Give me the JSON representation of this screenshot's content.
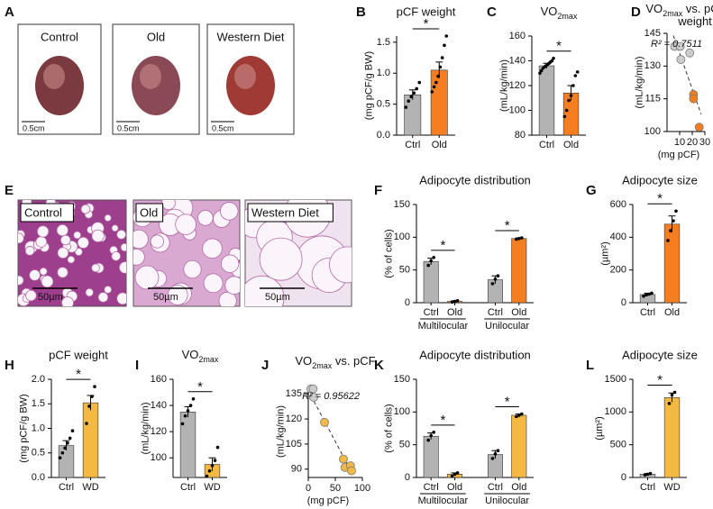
{
  "images": [
    {
      "label": "A",
      "panels": [
        {
          "caption": "Control",
          "scale": "0.5cm"
        },
        {
          "caption": "Old",
          "scale": "0.5cm"
        },
        {
          "caption": "Western Diet",
          "scale": "0.5cm"
        }
      ]
    },
    {
      "label": "E",
      "panels": [
        {
          "caption": "Control",
          "scale": "50µm"
        },
        {
          "caption": "Old",
          "scale": "50µm"
        },
        {
          "caption": "Western Diet",
          "scale": "50µm"
        }
      ]
    }
  ],
  "chart_data": [
    {
      "type": "bar",
      "label": "B",
      "title": "pCF weight",
      "ylabel": "(mg pCF/g BW)",
      "categories": [
        "Ctrl",
        "Old"
      ],
      "values": [
        0.65,
        1.05
      ],
      "errors": [
        0.08,
        0.13
      ],
      "colors": [
        "#b3b3b3",
        "#f57f20"
      ],
      "points": [
        [
          0.45,
          0.55,
          0.62,
          0.68,
          0.75,
          0.85
        ],
        [
          0.7,
          0.78,
          0.85,
          0.95,
          1.1,
          1.25,
          1.45,
          1.6
        ]
      ],
      "ylim": [
        0,
        1.6
      ],
      "yticks": [
        {
          "value": 0,
          "label": "0.0"
        },
        0.5,
        {
          "value": 1,
          "label": "1.0"
        },
        1.5
      ],
      "significance": [
        {
          "label": "*",
          "between": [
            0,
            1
          ]
        }
      ]
    },
    {
      "type": "bar",
      "label": "C",
      "title": [
        {
          "text": "VO"
        },
        {
          "text": "2max",
          "sub": true
        }
      ],
      "ylabel": "(mL/kg/min)",
      "categories": [
        "Ctrl",
        "Old"
      ],
      "values": [
        136,
        114
      ],
      "errors": [
        2,
        6
      ],
      "colors": [
        "#b3b3b3",
        "#f57f20"
      ],
      "points": [
        [
          130,
          132,
          134,
          135,
          136,
          137,
          138,
          139,
          140,
          142
        ],
        [
          95,
          100,
          108,
          112,
          120,
          128,
          131
        ]
      ],
      "ylim": [
        80,
        160
      ],
      "yticks": [
        80,
        100,
        120,
        140,
        160
      ],
      "significance": [
        {
          "label": "*",
          "between": [
            0,
            1
          ]
        }
      ]
    },
    {
      "type": "scatter",
      "label": "D",
      "title": [
        {
          "text": "VO"
        },
        {
          "text": "2max",
          "sub": true
        },
        {
          "text": " vs. pCF"
        },
        {
          "text": "weight",
          "newline": true
        }
      ],
      "xlabel": "(mg pCF)",
      "ylabel": "(mL/kg/min)",
      "x": [
        6,
        10.5,
        11,
        18,
        21,
        21,
        25.5
      ],
      "y": [
        139,
        139,
        133,
        136,
        117,
        115,
        102
      ],
      "colors": [
        "#cccccc",
        "#cccccc",
        "#cccccc",
        "#cccccc",
        "#f57f20",
        "#f57f20",
        "#f57f20"
      ],
      "trendline": {
        "x": [
          5,
          27
        ],
        "y": [
          144,
          108
        ]
      },
      "annotation": "R² = 0.7511",
      "xlim": [
        0,
        30
      ],
      "xticks": [
        10,
        20,
        30
      ],
      "ylim": [
        100,
        145
      ],
      "yticks": [
        100,
        115,
        130,
        145
      ]
    },
    {
      "type": "bar",
      "label": "F",
      "title": "Adipocyte distribution",
      "ylabel": "(% of cells)",
      "categories": [
        "Ctrl",
        "Old",
        "Ctrl",
        "Old"
      ],
      "values": [
        63,
        2,
        35,
        98
      ],
      "errors": [
        5,
        1,
        6,
        1
      ],
      "colors": [
        "#b3b3b3",
        "#f57f20",
        "#b3b3b3",
        "#f57f20"
      ],
      "points": [
        [
          57,
          64,
          69
        ],
        [
          1,
          2,
          3
        ],
        [
          29,
          36,
          41
        ],
        [
          97,
          98,
          99
        ]
      ],
      "groups": [
        {
          "label": "Multilocular",
          "categories": [
            0,
            1
          ]
        },
        {
          "label": "Unilocular",
          "categories": [
            2,
            3
          ]
        }
      ],
      "ylim": [
        0,
        150
      ],
      "yticks": [
        0,
        50,
        100,
        150
      ],
      "significance": [
        {
          "label": "*",
          "between": [
            0,
            1
          ]
        },
        {
          "label": "*",
          "between": [
            2,
            3
          ]
        }
      ]
    },
    {
      "type": "bar",
      "label": "G",
      "title": "Adipocyte size",
      "ylabel": "(µm²)",
      "categories": [
        "Ctrl",
        "Old"
      ],
      "values": [
        50,
        480
      ],
      "errors": [
        8,
        50
      ],
      "colors": [
        "#b3b3b3",
        "#f57f20"
      ],
      "points": [
        [
          40,
          48,
          52,
          58
        ],
        [
          380,
          440,
          500,
          560
        ]
      ],
      "ylim": [
        0,
        600
      ],
      "yticks": [
        0,
        200,
        400,
        600
      ],
      "significance": [
        {
          "label": "*",
          "between": [
            0,
            1
          ]
        }
      ]
    },
    {
      "type": "bar",
      "label": "H",
      "title": "pCF weight",
      "ylabel": "(mg pCF/g BW)",
      "categories": [
        "Ctrl",
        "WD"
      ],
      "values": [
        0.65,
        1.52
      ],
      "errors": [
        0.1,
        0.15
      ],
      "colors": [
        "#b3b3b3",
        "#f4b942"
      ],
      "points": [
        [
          0.4,
          0.5,
          0.6,
          0.7,
          0.8,
          0.95
        ],
        [
          1.1,
          1.45,
          1.65,
          1.85
        ]
      ],
      "ylim": [
        0,
        2
      ],
      "yticks": [
        {
          "value": 0,
          "label": "0.0"
        },
        0.5,
        {
          "value": 1,
          "label": "1.0"
        },
        1.5,
        {
          "value": 2,
          "label": "2.0"
        }
      ],
      "significance": [
        {
          "label": "*",
          "between": [
            0,
            1
          ]
        }
      ]
    },
    {
      "type": "bar",
      "label": "I",
      "title": [
        {
          "text": "VO"
        },
        {
          "text": "2max",
          "sub": true
        }
      ],
      "ylabel": "(mL/kg/min)",
      "categories": [
        "Ctrl",
        "WD"
      ],
      "values": [
        135,
        95
      ],
      "errors": [
        4,
        5
      ],
      "colors": [
        "#b3b3b3",
        "#f4b942"
      ],
      "points": [
        [
          126,
          132,
          136,
          140,
          145
        ],
        [
          86,
          90,
          94,
          98,
          108
        ]
      ],
      "ylim": [
        85,
        160
      ],
      "yticks": [
        100,
        120,
        140,
        160
      ],
      "significance": [
        {
          "label": "*",
          "between": [
            0,
            1
          ]
        }
      ]
    },
    {
      "type": "scatter",
      "label": "J",
      "title": [
        {
          "text": "VO"
        },
        {
          "text": "2max",
          "sub": true
        },
        {
          "text": " vs. pCF"
        }
      ],
      "xlabel": "(mg pCF)",
      "ylabel": "(mL/kg/min)",
      "x": [
        5,
        9,
        10,
        30,
        65,
        68,
        78,
        80
      ],
      "y": [
        138,
        138,
        133,
        118,
        96,
        91,
        92,
        89
      ],
      "colors": [
        "#cccccc",
        "#cccccc",
        "#cccccc",
        "#f4b942",
        "#f4b942",
        "#f4b942",
        "#f4b942",
        "#f4b942"
      ],
      "trendline": {
        "x": [
          5,
          82
        ],
        "y": [
          134,
          87
        ]
      },
      "annotation": "R² = 0.95622",
      "xlim": [
        0,
        100
      ],
      "xticks": [
        0,
        50,
        100
      ],
      "ylim": [
        85,
        140
      ],
      "yticks": [
        90,
        105,
        120,
        135
      ]
    },
    {
      "type": "bar",
      "label": "K",
      "title": "Adipocyte distribution",
      "ylabel": "(% of cells)",
      "categories": [
        "Ctrl",
        "Old",
        "Ctrl",
        "Old"
      ],
      "values": [
        63,
        5,
        35,
        95
      ],
      "errors": [
        5,
        2,
        6,
        2
      ],
      "colors": [
        "#b3b3b3",
        "#f4b942",
        "#b3b3b3",
        "#f4b942"
      ],
      "points": [
        [
          57,
          64,
          69
        ],
        [
          2,
          5,
          7
        ],
        [
          29,
          36,
          41
        ],
        [
          93,
          95,
          97
        ]
      ],
      "groups": [
        {
          "label": "Multilocular",
          "categories": [
            0,
            1
          ]
        },
        {
          "label": "Unilocular",
          "categories": [
            2,
            3
          ]
        }
      ],
      "ylim": [
        0,
        150
      ],
      "yticks": [
        0,
        50,
        100,
        150
      ],
      "significance": [
        {
          "label": "*",
          "between": [
            0,
            1
          ]
        },
        {
          "label": "*",
          "between": [
            2,
            3
          ]
        }
      ]
    },
    {
      "type": "bar",
      "label": "L",
      "title": "Adipocyte size",
      "ylabel": "(µm²)",
      "categories": [
        "Ctrl",
        "WD"
      ],
      "values": [
        50,
        1220
      ],
      "errors": [
        10,
        70
      ],
      "colors": [
        "#b3b3b3",
        "#f4b942"
      ],
      "points": [
        [
          40,
          50,
          60
        ],
        [
          1130,
          1260,
          1300
        ]
      ],
      "ylim": [
        0,
        1500
      ],
      "yticks": [
        0,
        500,
        1000,
        1500
      ],
      "significance": [
        {
          "label": "*",
          "between": [
            0,
            1
          ]
        }
      ]
    }
  ]
}
